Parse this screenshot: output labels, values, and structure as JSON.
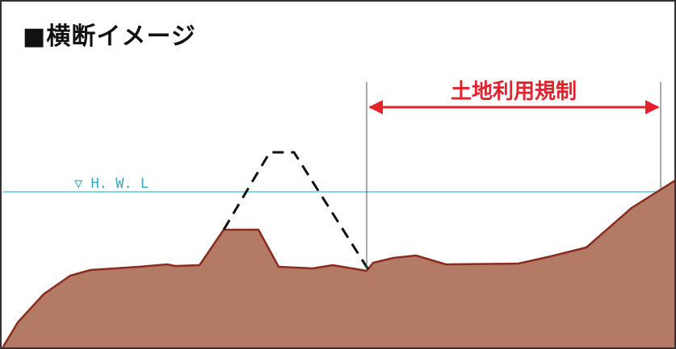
{
  "title": "■横断イメージ",
  "water_level": {
    "label": "▽ H. W. L"
  },
  "regulated_area": {
    "label": "土地利用規制"
  },
  "colors": {
    "ground_fill": "#b37b66",
    "ground_outline": "#8a2c1f",
    "water_line": "#5fc6d6",
    "water_label": "#3aa5bf",
    "arrow": "#e2232d",
    "region_label": "#e2232d",
    "dashed_levee": "#111111",
    "guide_line": "#555555"
  },
  "icons": {
    "title_bullet": "black-square",
    "water_level_marker": "water-level-triangle-icon"
  }
}
